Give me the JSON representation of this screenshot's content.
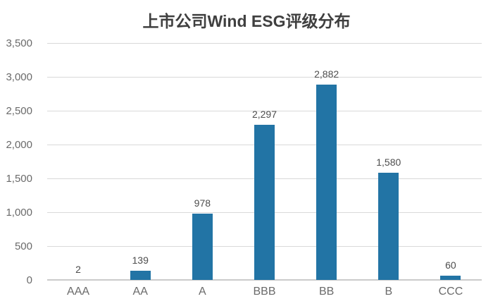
{
  "title": "上市公司Wind ESG评级分布",
  "chart_data": {
    "type": "bar",
    "title": "上市公司Wind ESG评级分布",
    "categories": [
      "AAA",
      "AA",
      "A",
      "BBB",
      "BB",
      "B",
      "CCC"
    ],
    "values": [
      2,
      139,
      978,
      2297,
      2882,
      1580,
      60
    ],
    "value_labels": [
      "2",
      "139",
      "978",
      "2,297",
      "2,882",
      "1,580",
      "60"
    ],
    "xlabel": "",
    "ylabel": "",
    "ylim": [
      0,
      3500
    ],
    "yticks": [
      0,
      500,
      1000,
      1500,
      2000,
      2500,
      3000,
      3500
    ],
    "ytick_labels": [
      "0",
      "500",
      "1,000",
      "1,500",
      "2,000",
      "2,500",
      "3,000",
      "3,500"
    ],
    "grid": true,
    "legend": false
  },
  "colors": {
    "bar": "#2274A5",
    "grid": "#d9d9d9",
    "axis_line": "#cbcbcb",
    "title_text": "#3f3f3f",
    "axis_text": "#6a6a6a",
    "value_text": "#4d4d4d",
    "background": "#ffffff"
  }
}
